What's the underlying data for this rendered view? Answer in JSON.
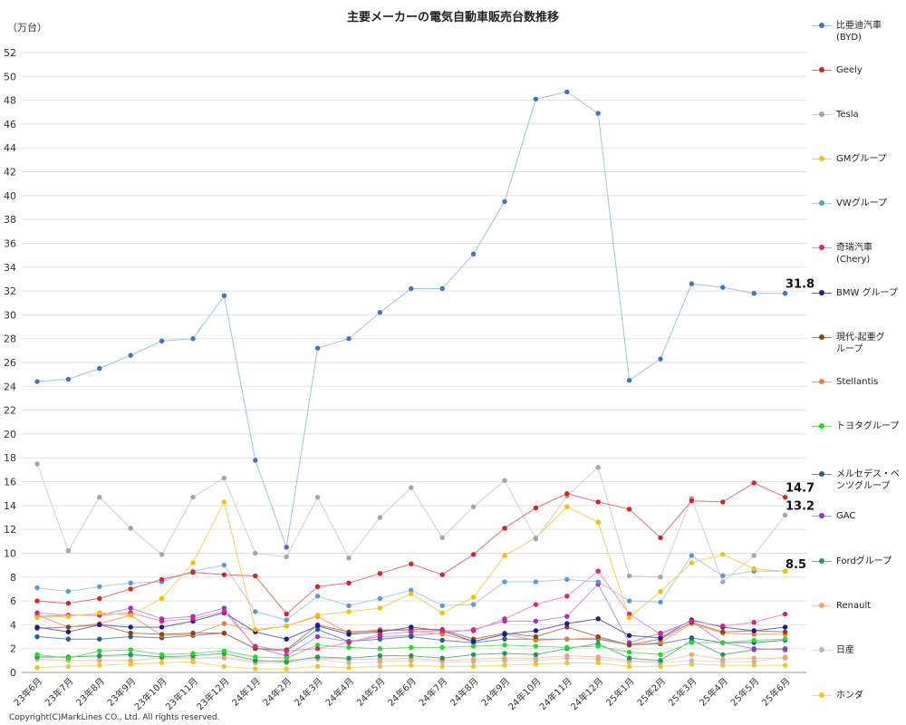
{
  "chart_data": {
    "type": "line",
    "title": "主要メーカーの電気自動車販売台数推移",
    "ylabel": "（万台）",
    "ylim": [
      0,
      52
    ],
    "ytick_step": 2,
    "grid": true,
    "legend_position": "right",
    "categories": [
      "23年6月",
      "23年7月",
      "23年8月",
      "23年9月",
      "23年10月",
      "23年11月",
      "23年12月",
      "24年1月",
      "24年2月",
      "24年3月",
      "24年4月",
      "24年5月",
      "24年6月",
      "24年7月",
      "24年8月",
      "24年9月",
      "24年10月",
      "24年11月",
      "24年12月",
      "25年1月",
      "25年2月",
      "25年3月",
      "25年4月",
      "25年5月",
      "25年6月"
    ],
    "series": [
      {
        "name": "比亜迪汽車\n(BYD)",
        "color": "#4472c4",
        "line": "#9dc3e6",
        "values": [
          24.4,
          24.6,
          25.5,
          26.6,
          27.8,
          28.0,
          31.6,
          17.8,
          10.5,
          27.2,
          28.0,
          30.2,
          32.2,
          32.2,
          35.1,
          39.5,
          48.1,
          48.7,
          46.9,
          24.5,
          26.3,
          32.6,
          32.3,
          31.8,
          31.8
        ]
      },
      {
        "name": "Geely",
        "color": "#e02020",
        "line": "#e87070",
        "values": [
          6.0,
          5.8,
          6.2,
          7.0,
          7.8,
          8.4,
          8.2,
          8.1,
          4.9,
          7.2,
          7.5,
          8.3,
          9.1,
          8.2,
          9.9,
          12.1,
          13.8,
          15.0,
          14.3,
          13.7,
          11.3,
          14.4,
          14.3,
          15.9,
          14.7
        ]
      },
      {
        "name": "Tesla",
        "color": "#a5a5a5",
        "line": "#d0d0d0",
        "values": [
          17.5,
          10.2,
          14.7,
          12.1,
          9.9,
          14.7,
          16.3,
          10.0,
          9.7,
          14.7,
          9.6,
          13.0,
          15.5,
          11.3,
          13.9,
          16.1,
          11.2,
          14.8,
          17.2,
          8.1,
          8.0,
          14.6,
          7.6,
          9.8,
          13.2
        ]
      },
      {
        "name": "GMグループ",
        "color": "#f5c000",
        "line": "#f5d050",
        "values": [
          4.6,
          4.7,
          5.0,
          4.8,
          6.2,
          9.2,
          14.3,
          3.6,
          3.9,
          4.8,
          5.1,
          5.4,
          6.6,
          5.0,
          6.3,
          9.8,
          11.3,
          13.9,
          12.6,
          4.6,
          6.8,
          9.2,
          9.9,
          8.7,
          8.5
        ]
      },
      {
        "name": "VWグループ",
        "color": "#5b9bd5",
        "line": "#a9cbe8",
        "values": [
          7.1,
          6.8,
          7.2,
          7.5,
          7.6,
          8.5,
          9.0,
          5.1,
          4.4,
          6.4,
          5.6,
          6.2,
          6.9,
          5.6,
          5.7,
          7.6,
          7.6,
          7.8,
          7.6,
          6.0,
          5.9,
          9.8,
          8.1,
          8.5,
          8.5
        ]
      },
      {
        "name": "奇瑞汽車\n(Chery)",
        "color": "#e0207a",
        "line": "#f090c0",
        "values": [
          5.0,
          4.8,
          4.8,
          5.0,
          4.3,
          4.5,
          5.1,
          2.2,
          1.8,
          2.0,
          2.5,
          3.2,
          3.4,
          3.5,
          3.5,
          4.5,
          5.7,
          6.4,
          8.5,
          4.9,
          3.2,
          4.3,
          3.9,
          4.2,
          4.9
        ]
      },
      {
        "name": "BMW グループ",
        "color": "#1a1aa0",
        "line": "#6060c0",
        "values": [
          3.8,
          3.4,
          4.0,
          3.8,
          3.8,
          4.3,
          5.0,
          3.4,
          2.8,
          3.9,
          3.2,
          3.4,
          3.8,
          3.5,
          2.6,
          3.2,
          3.5,
          4.1,
          4.5,
          3.1,
          2.9,
          4.4,
          3.8,
          3.5,
          3.8
        ]
      },
      {
        "name": "現代-起亜グ\nループ",
        "color": "#8b4513",
        "line": "#b08060",
        "values": [
          3.7,
          3.8,
          4.0,
          3.3,
          3.2,
          3.3,
          3.3,
          2.0,
          1.9,
          4.0,
          3.4,
          3.5,
          3.6,
          3.6,
          2.8,
          3.3,
          3.0,
          3.8,
          3.0,
          2.3,
          2.8,
          4.2,
          3.4,
          3.5,
          3.4
        ]
      },
      {
        "name": "Stellantis",
        "color": "#ed7d31",
        "line": "#f0a070",
        "values": [
          4.8,
          3.8,
          4.1,
          4.8,
          3.1,
          3.2,
          4.1,
          3.5,
          3.9,
          4.7,
          3.3,
          3.6,
          3.5,
          3.2,
          2.6,
          3.2,
          2.7,
          2.8,
          2.9,
          2.3,
          2.5,
          4.1,
          3.3,
          3.2,
          3.2
        ]
      },
      {
        "name": "トヨタグループ",
        "color": "#22dd22",
        "line": "#70e070",
        "values": [
          1.5,
          1.2,
          1.8,
          1.9,
          1.5,
          1.6,
          1.8,
          1.3,
          1.2,
          2.3,
          2.1,
          2.0,
          2.1,
          2.1,
          2.2,
          2.3,
          2.2,
          2.1,
          2.2,
          1.7,
          1.5,
          2.5,
          2.5,
          2.7,
          2.8
        ]
      },
      {
        "name": "メルセデス・ベ\nンツグループ",
        "color": "#255e91",
        "line": "#6090b8",
        "values": [
          3.0,
          2.8,
          2.8,
          3.0,
          2.9,
          3.1,
          3.3,
          2.0,
          1.8,
          3.6,
          2.6,
          2.8,
          3.0,
          2.7,
          2.5,
          2.8,
          2.8,
          2.8,
          2.8,
          2.3,
          2.4,
          2.9,
          2.5,
          2.5,
          2.7
        ]
      },
      {
        "name": "GAC",
        "color": "#9b30d0",
        "line": "#c090e0",
        "values": [
          4.7,
          4.8,
          4.8,
          5.4,
          4.5,
          4.7,
          5.4,
          2.1,
          1.4,
          3.0,
          2.6,
          3.0,
          3.1,
          3.3,
          3.6,
          4.3,
          4.3,
          4.7,
          7.4,
          2.5,
          3.3,
          4.3,
          2.5,
          2.0,
          1.9
        ]
      },
      {
        "name": "Fordグループ",
        "color": "#1a9a5a",
        "line": "#60b890",
        "values": [
          1.3,
          1.3,
          1.4,
          1.5,
          1.3,
          1.4,
          1.6,
          1.0,
          0.9,
          1.3,
          1.2,
          1.4,
          1.4,
          1.2,
          1.5,
          1.6,
          1.5,
          2.0,
          2.4,
          1.2,
          1.0,
          2.7,
          1.5,
          1.9,
          2.0
        ]
      },
      {
        "name": "Renault",
        "color": "#f4a070",
        "line": "#f8c8a8",
        "values": [
          1.1,
          1.0,
          1.0,
          1.0,
          1.2,
          1.2,
          1.3,
          0.9,
          1.0,
          1.2,
          1.1,
          1.1,
          1.2,
          1.0,
          1.1,
          1.2,
          1.2,
          1.4,
          1.3,
          1.0,
          0.9,
          1.5,
          1.1,
          1.2,
          1.2
        ]
      },
      {
        "name": "日産",
        "color": "#b8b8b8",
        "line": "#dcdcdc",
        "values": [
          1.2,
          1.3,
          1.3,
          1.4,
          1.3,
          1.2,
          1.2,
          0.8,
          0.8,
          1.1,
          0.8,
          0.9,
          1.0,
          0.9,
          0.9,
          1.0,
          1.0,
          1.2,
          1.1,
          0.9,
          0.8,
          1.0,
          0.9,
          0.9,
          1.3
        ]
      },
      {
        "name": "ホンダ",
        "color": "#f5c518",
        "line": "#f5dc70",
        "values": [
          0.4,
          0.5,
          0.6,
          0.7,
          0.8,
          0.9,
          0.5,
          0.3,
          0.3,
          0.5,
          0.4,
          0.5,
          0.6,
          0.5,
          0.5,
          0.6,
          0.7,
          0.8,
          0.8,
          0.5,
          0.5,
          0.7,
          0.6,
          0.6,
          0.6
        ]
      }
    ],
    "annotations": [
      "31.8",
      "14.7",
      "13.2",
      "8.5"
    ]
  },
  "copyright": "Copyright(C)MarkLines CO., Ltd. All rights reserved."
}
